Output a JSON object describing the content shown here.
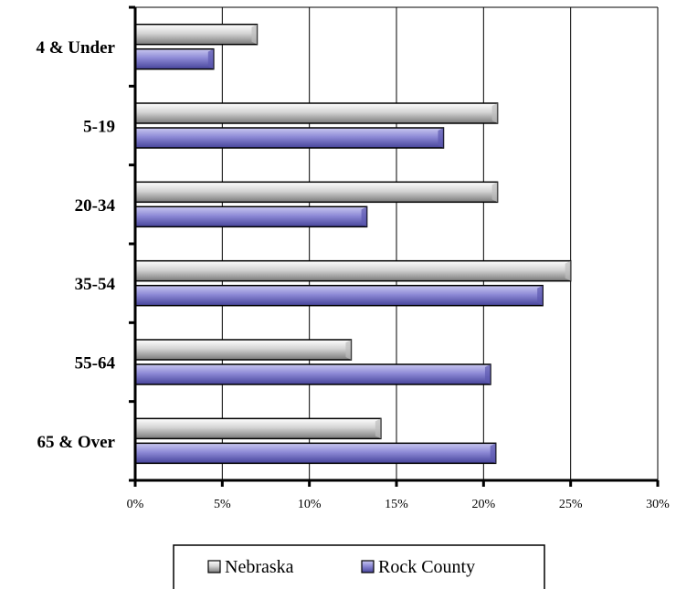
{
  "chart_data": {
    "type": "bar",
    "orientation": "horizontal",
    "categories": [
      "4 & Under",
      "5-19",
      "20-34",
      "35-54",
      "55-64",
      "65 & Over"
    ],
    "series": [
      {
        "name": "Nebraska",
        "values": [
          7.0,
          20.8,
          20.8,
          25.0,
          12.4,
          14.1
        ],
        "color": "#a6a6a6"
      },
      {
        "name": "Rock County",
        "values": [
          4.5,
          17.7,
          13.3,
          23.4,
          20.4,
          20.7
        ],
        "color": "#7b78c9"
      }
    ],
    "xlim": [
      0,
      30
    ],
    "x_ticks": [
      "0%",
      "5%",
      "10%",
      "15%",
      "20%",
      "25%",
      "30%"
    ],
    "grid": "vertical",
    "legend_position": "bottom"
  }
}
